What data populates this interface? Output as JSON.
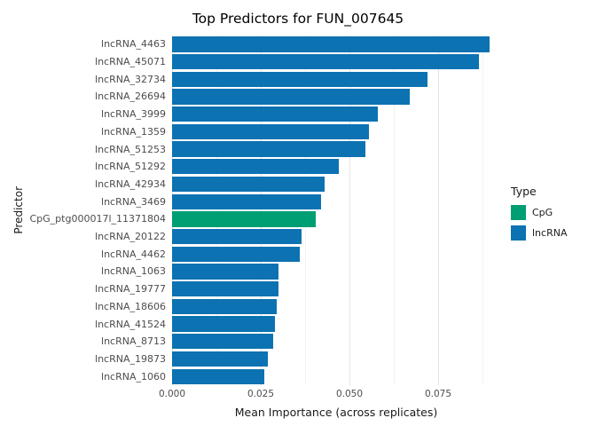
{
  "figure": {
    "background": "#ffffff"
  },
  "chart_data": {
    "type": "bar",
    "orientation": "horizontal",
    "title": "Top Predictors for FUN_007645",
    "xlabel": "Mean Importance (across replicates)",
    "ylabel": "Predictor",
    "xlim": [
      0,
      0.0925
    ],
    "xticks": [
      0,
      0.025,
      0.05,
      0.075
    ],
    "xtick_labels": [
      "0.000",
      "0.025",
      "0.050",
      "0.075"
    ],
    "grid": {
      "major": [
        0,
        0.025,
        0.05,
        0.075
      ],
      "minor": [
        0.0125,
        0.0375,
        0.0625,
        0.0875
      ]
    },
    "legend": {
      "position": "right",
      "title": "Type",
      "items": [
        {
          "label": "CpG",
          "color": "#009E73"
        },
        {
          "label": "lncRNA",
          "color": "#0C72B2"
        }
      ]
    },
    "categories": [
      "lncRNA_4463",
      "lncRNA_45071",
      "lncRNA_32734",
      "lncRNA_26694",
      "lncRNA_3999",
      "lncRNA_1359",
      "lncRNA_51253",
      "lncRNA_51292",
      "lncRNA_42934",
      "lncRNA_3469",
      "CpG_ptg000017l_11371804",
      "lncRNA_20122",
      "lncRNA_4462",
      "lncRNA_1063",
      "lncRNA_19777",
      "lncRNA_18606",
      "lncRNA_41524",
      "lncRNA_8713",
      "lncRNA_19873",
      "lncRNA_1060"
    ],
    "values": [
      0.0895,
      0.0865,
      0.072,
      0.067,
      0.058,
      0.0555,
      0.0545,
      0.047,
      0.043,
      0.042,
      0.0405,
      0.0365,
      0.036,
      0.03,
      0.03,
      0.0295,
      0.029,
      0.0285,
      0.027,
      0.026
    ],
    "types": [
      "lncRNA",
      "lncRNA",
      "lncRNA",
      "lncRNA",
      "lncRNA",
      "lncRNA",
      "lncRNA",
      "lncRNA",
      "lncRNA",
      "lncRNA",
      "CpG",
      "lncRNA",
      "lncRNA",
      "lncRNA",
      "lncRNA",
      "lncRNA",
      "lncRNA",
      "lncRNA",
      "lncRNA",
      "lncRNA"
    ]
  }
}
